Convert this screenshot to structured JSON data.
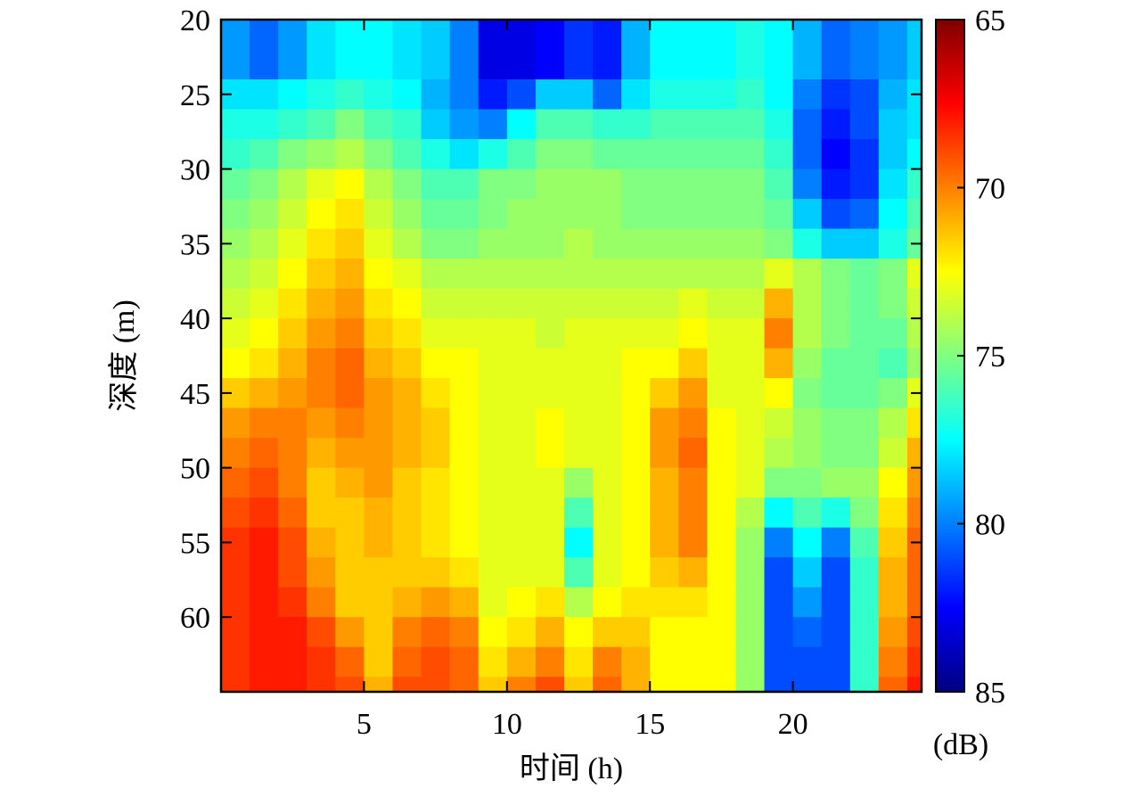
{
  "chart_data": {
    "type": "heatmap",
    "title": "",
    "xlabel": "时间 (h)",
    "ylabel": "深度 (m)",
    "xlim": [
      0,
      24.5
    ],
    "ylim": [
      20,
      65
    ],
    "y_inverted": true,
    "x_ticks": [
      5,
      10,
      15,
      20
    ],
    "y_ticks": [
      20,
      25,
      30,
      35,
      40,
      45,
      50,
      55,
      60
    ],
    "depth_bins": [
      20,
      22,
      24,
      26,
      28,
      30,
      32,
      34,
      36,
      38,
      40,
      42,
      44,
      46,
      48,
      50,
      52,
      54,
      56,
      58,
      60,
      62,
      64
    ],
    "hour_bins": [
      0,
      1,
      2,
      3,
      4,
      5,
      6,
      7,
      8,
      9,
      10,
      11,
      12,
      13,
      14,
      15,
      16,
      17,
      18,
      19,
      20,
      21,
      22,
      23,
      24
    ],
    "values_dB": [
      [
        79.5,
        80.5,
        79.5,
        78,
        77.5,
        77.5,
        78,
        78.5,
        80,
        83,
        83,
        82.5,
        81.5,
        82,
        79,
        77.5,
        77.5,
        77.5,
        77,
        77.5,
        79,
        80.5,
        80,
        79.5,
        78.5
      ],
      [
        79.5,
        80.5,
        79.5,
        78,
        77.5,
        77.5,
        78,
        78.5,
        80,
        83,
        83,
        82.5,
        81.5,
        82,
        79,
        77.5,
        77.5,
        77.5,
        77,
        77.5,
        79,
        80.5,
        80,
        79.5,
        78.5
      ],
      [
        78,
        78,
        77.5,
        77,
        76.5,
        77,
        77.5,
        79,
        80,
        82,
        81,
        78.5,
        78.5,
        80.5,
        78,
        77,
        77,
        77,
        76.5,
        77.5,
        80,
        81.5,
        81,
        79,
        78
      ],
      [
        77,
        77,
        76.5,
        76,
        75,
        76,
        76.5,
        78.5,
        79.5,
        80,
        77.5,
        76,
        76,
        76.5,
        76.5,
        76,
        76,
        76,
        76,
        77,
        80.5,
        82,
        81,
        78.5,
        78
      ],
      [
        76.5,
        76,
        75,
        74.5,
        74,
        75,
        76,
        77,
        78,
        77,
        76,
        75,
        75,
        75.5,
        75.5,
        75.5,
        75.5,
        75.5,
        75.5,
        76.5,
        80.5,
        82.5,
        81.5,
        78.5,
        77.5
      ],
      [
        75.5,
        75,
        74,
        73,
        72.5,
        74,
        75,
        76,
        76,
        75,
        75,
        74.5,
        74.5,
        74.5,
        75,
        75,
        75,
        75,
        75,
        76,
        80,
        82,
        81.5,
        78,
        76.5
      ],
      [
        75,
        74.5,
        73.5,
        72.5,
        72,
        73.5,
        74.5,
        75.5,
        75.5,
        75,
        74.5,
        74.5,
        74.5,
        74.5,
        75,
        75,
        75,
        75,
        75,
        75.5,
        78.5,
        81,
        80.5,
        77.5,
        76
      ],
      [
        74.5,
        74,
        73,
        72,
        71.5,
        73,
        74,
        75,
        75,
        74.5,
        74.5,
        74.5,
        74,
        74.5,
        74.5,
        74.5,
        74.5,
        74.5,
        74.5,
        75,
        77,
        78.5,
        78.5,
        77,
        75.5
      ],
      [
        74,
        73.5,
        72.5,
        71.5,
        71,
        72.5,
        73,
        74,
        74,
        74,
        74,
        74,
        74,
        74,
        74,
        74,
        74,
        74,
        74,
        73,
        74,
        75,
        75.5,
        75,
        73
      ],
      [
        73.5,
        73,
        72,
        71,
        70.5,
        72,
        72.5,
        73.5,
        73.5,
        73.5,
        73.5,
        73.5,
        73.5,
        73.5,
        73.5,
        73.5,
        73,
        73.5,
        73.5,
        71,
        74,
        75,
        75.5,
        75,
        73.5
      ],
      [
        73,
        72.5,
        71.5,
        70.5,
        70,
        71.5,
        72,
        73,
        73,
        73,
        73,
        73.5,
        73,
        73,
        73,
        73,
        72.5,
        73,
        73,
        70,
        74,
        75,
        75.5,
        75.5,
        74
      ],
      [
        72.5,
        72,
        71,
        70,
        69.5,
        71,
        71.5,
        72.5,
        72.5,
        73,
        73,
        73,
        73,
        73,
        72.5,
        72.5,
        71.5,
        73,
        73,
        71,
        74.5,
        75.5,
        75.5,
        76,
        74.5
      ],
      [
        71.5,
        71,
        70.5,
        70,
        69.5,
        70.5,
        71,
        72,
        72.5,
        73,
        73,
        73,
        73,
        73,
        72.5,
        71.5,
        70.5,
        73,
        73,
        72.5,
        75,
        75.5,
        75.5,
        75,
        73
      ],
      [
        70.5,
        70,
        70,
        70.5,
        70,
        70.5,
        71,
        71.5,
        72.5,
        73,
        73,
        72.5,
        73,
        73,
        72.5,
        70.5,
        70,
        72.5,
        73,
        73.5,
        74.5,
        75,
        75,
        74,
        72
      ],
      [
        70,
        69.5,
        70,
        71,
        70.5,
        70.5,
        71,
        71.5,
        72.5,
        73,
        73,
        72.5,
        73,
        73,
        72.5,
        70.5,
        69.5,
        72.5,
        73,
        74,
        74.5,
        75,
        75,
        73.5,
        71
      ],
      [
        69.5,
        69,
        70,
        71.5,
        71,
        70.5,
        71.5,
        72,
        72.5,
        73,
        73,
        73,
        74.5,
        73,
        72.5,
        71,
        70,
        72.5,
        73,
        75,
        75,
        74.5,
        74.5,
        72.5,
        70.5
      ],
      [
        69,
        68.5,
        69.5,
        71.5,
        71.5,
        71,
        71.5,
        72,
        72.5,
        73,
        73,
        73,
        76,
        73,
        72.5,
        71,
        70,
        72.5,
        74,
        77.5,
        76,
        77,
        75,
        72,
        70
      ],
      [
        68.5,
        68,
        69,
        71,
        71.5,
        71,
        71.5,
        72,
        72.5,
        73,
        73,
        73,
        77.5,
        73,
        72.5,
        71,
        70,
        72.5,
        74.5,
        80,
        77.5,
        80,
        76,
        71.5,
        69.5
      ],
      [
        68.5,
        68,
        69,
        70.5,
        71.5,
        71.5,
        71.5,
        71.5,
        72,
        73,
        73,
        73,
        76,
        73,
        72.5,
        71.5,
        71,
        72.5,
        74.5,
        81,
        78.5,
        81,
        76.5,
        71,
        69.5
      ],
      [
        68.5,
        68,
        68.5,
        70,
        71.5,
        71.5,
        71,
        70.5,
        71,
        73,
        72.5,
        72,
        74,
        72.5,
        72,
        72,
        72,
        72.5,
        74.5,
        81,
        79.5,
        81,
        76.5,
        71,
        69.5
      ],
      [
        68.5,
        68,
        68,
        69,
        70.5,
        71.5,
        70,
        69.5,
        70,
        72.5,
        72,
        71,
        72.5,
        71.5,
        71.5,
        72.5,
        72.5,
        72.5,
        74.5,
        81,
        80.5,
        81,
        76.5,
        70.5,
        69
      ],
      [
        68.5,
        68,
        68,
        68.5,
        69.5,
        71.5,
        69.5,
        69,
        69.5,
        72,
        71,
        70,
        72,
        70,
        71,
        72.5,
        72.5,
        72.5,
        74.5,
        81,
        81,
        81,
        76.5,
        70,
        68.5
      ],
      [
        68.5,
        68,
        68,
        68.5,
        69,
        71,
        69,
        69,
        69.5,
        71.5,
        70,
        69,
        71.5,
        69.5,
        71,
        72.5,
        72.5,
        72.5,
        74.5,
        81,
        81,
        81,
        76.5,
        69.5,
        68
      ]
    ],
    "colorbar": {
      "label": "(dB)",
      "min": 65,
      "max": 85,
      "ticks": [
        65,
        70,
        75,
        80,
        85
      ],
      "colormap": "jet-reversed"
    }
  }
}
